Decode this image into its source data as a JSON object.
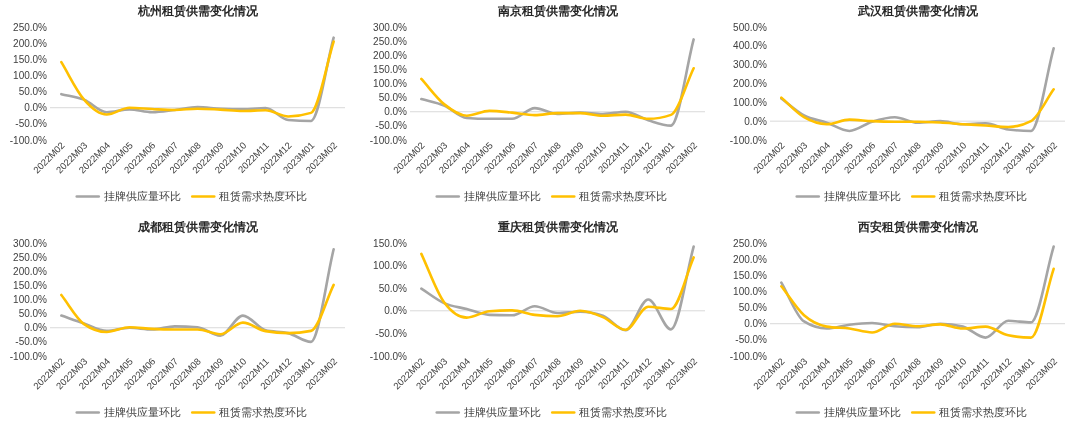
{
  "chart_data": [
    {
      "type": "line",
      "title": "杭州租赁供需变化情况",
      "categories": [
        "2022M02",
        "2022M03",
        "2022M04",
        "2022M05",
        "2022M06",
        "2022M07",
        "2022M08",
        "2022M09",
        "2022M10",
        "2022M11",
        "2022M12",
        "2023M01",
        "2023M02"
      ],
      "series": [
        {
          "name": "挂牌供应量环比",
          "color": "#a5a5a5",
          "values": [
            42,
            25,
            -14,
            -5,
            -14,
            -7,
            2,
            -3,
            -5,
            -1,
            -38,
            -41,
            217
          ]
        },
        {
          "name": "租赁需求热度环比",
          "color": "#ffc000",
          "values": [
            141,
            25,
            -21,
            0,
            -4,
            -7,
            -3,
            -6,
            -10,
            -8,
            -27,
            -16,
            205
          ]
        }
      ],
      "ylim": [
        -100,
        250
      ],
      "yticks": [
        {
          "value": -100,
          "label": "-100.0%"
        },
        {
          "value": -50,
          "label": "-50.0%"
        },
        {
          "value": 0,
          "label": "0.0%"
        },
        {
          "value": 50,
          "label": "50.0%"
        },
        {
          "value": 100,
          "label": "100.0%"
        },
        {
          "value": 150,
          "label": "150.0%"
        },
        {
          "value": 200,
          "label": "200.0%"
        },
        {
          "value": 250,
          "label": "250.0%"
        }
      ],
      "legend": "bottom"
    },
    {
      "type": "line",
      "title": "南京租赁供需变化情况",
      "categories": [
        "2022M02",
        "2022M03",
        "2022M04",
        "2022M05",
        "2022M06",
        "2022M07",
        "2022M08",
        "2022M09",
        "2022M10",
        "2022M11",
        "2022M12",
        "2023M01",
        "2023M02"
      ],
      "series": [
        {
          "name": "挂牌供应量环比",
          "color": "#a5a5a5",
          "values": [
            45,
            22,
            -22,
            -25,
            -25,
            13,
            -8,
            -3,
            -8,
            0,
            -30,
            -49,
            256
          ]
        },
        {
          "name": "租赁需求热度环比",
          "color": "#ffc000",
          "values": [
            116,
            27,
            -14,
            3,
            -3,
            -12,
            -5,
            -5,
            -14,
            -10,
            -25,
            -11,
            154
          ]
        }
      ],
      "ylim": [
        -100,
        300
      ],
      "yticks": [
        {
          "value": -100,
          "label": "-100.0%"
        },
        {
          "value": -50,
          "label": "-50.0%"
        },
        {
          "value": 0,
          "label": "0.0%"
        },
        {
          "value": 50,
          "label": "50.0%"
        },
        {
          "value": 100,
          "label": "100.0%"
        },
        {
          "value": 150,
          "label": "150.0%"
        },
        {
          "value": 200,
          "label": "200.0%"
        },
        {
          "value": 250,
          "label": "250.0%"
        },
        {
          "value": 300,
          "label": "300.0%"
        }
      ],
      "legend": "bottom"
    },
    {
      "type": "line",
      "title": "武汉租赁供需变化情况",
      "categories": [
        "2022M02",
        "2022M03",
        "2022M04",
        "2022M05",
        "2022M06",
        "2022M07",
        "2022M08",
        "2022M09",
        "2022M10",
        "2022M11",
        "2022M12",
        "2023M01",
        "2023M02"
      ],
      "series": [
        {
          "name": "挂牌供应量环比",
          "color": "#a5a5a5",
          "values": [
            120,
            30,
            -8,
            -52,
            -3,
            21,
            -8,
            0,
            -16,
            -11,
            -44,
            -52,
            387
          ]
        },
        {
          "name": "租赁需求热度环比",
          "color": "#ffc000",
          "values": [
            125,
            21,
            -16,
            8,
            0,
            -3,
            -3,
            -7,
            -16,
            -23,
            -31,
            0,
            169
          ]
        }
      ],
      "ylim": [
        -100,
        500
      ],
      "yticks": [
        {
          "value": -100,
          "label": "-100.0%"
        },
        {
          "value": 0,
          "label": "0.0%"
        },
        {
          "value": 100,
          "label": "100.0%"
        },
        {
          "value": 200,
          "label": "200.0%"
        },
        {
          "value": 300,
          "label": "300.0%"
        },
        {
          "value": 400,
          "label": "400.0%"
        },
        {
          "value": 500,
          "label": "500.0%"
        }
      ],
      "legend": "bottom"
    },
    {
      "type": "line",
      "title": "成都租赁供需变化情况",
      "categories": [
        "2022M02",
        "2022M03",
        "2022M04",
        "2022M05",
        "2022M06",
        "2022M07",
        "2022M08",
        "2022M09",
        "2022M10",
        "2022M11",
        "2022M12",
        "2023M01",
        "2023M02"
      ],
      "series": [
        {
          "name": "挂牌供应量环比",
          "color": "#a5a5a5",
          "values": [
            43,
            15,
            -11,
            0,
            -6,
            5,
            2,
            -28,
            43,
            -9,
            -19,
            -50,
            278
          ]
        },
        {
          "name": "租赁需求热度环比",
          "color": "#ffc000",
          "values": [
            116,
            13,
            -15,
            2,
            -4,
            -6,
            -6,
            -23,
            18,
            -12,
            -19,
            -11,
            152
          ]
        }
      ],
      "ylim": [
        -100,
        300
      ],
      "yticks": [
        {
          "value": -100,
          "label": "-100.0%"
        },
        {
          "value": -50,
          "label": "-50.0%"
        },
        {
          "value": 0,
          "label": "0.0%"
        },
        {
          "value": 50,
          "label": "50.0%"
        },
        {
          "value": 100,
          "label": "100.0%"
        },
        {
          "value": 150,
          "label": "150.0%"
        },
        {
          "value": 200,
          "label": "200.0%"
        },
        {
          "value": 250,
          "label": "250.0%"
        },
        {
          "value": 300,
          "label": "300.0%"
        }
      ],
      "legend": "bottom"
    },
    {
      "type": "line",
      "title": "重庆租赁供需变化情况",
      "categories": [
        "2022M02",
        "2022M03",
        "2022M04",
        "2022M05",
        "2022M06",
        "2022M07",
        "2022M08",
        "2022M09",
        "2022M10",
        "2022M11",
        "2022M12",
        "2023M01",
        "2023M02"
      ],
      "series": [
        {
          "name": "挂牌供应量环比",
          "color": "#a5a5a5",
          "values": [
            49,
            17,
            4,
            -9,
            -10,
            10,
            -5,
            -2,
            -11,
            -43,
            25,
            -41,
            142
          ]
        },
        {
          "name": "租赁需求热度环比",
          "color": "#ffc000",
          "values": [
            126,
            19,
            -15,
            -1,
            1,
            -9,
            -12,
            0,
            -14,
            -42,
            9,
            4,
            118
          ]
        }
      ],
      "ylim": [
        -100,
        150
      ],
      "yticks": [
        {
          "value": -100,
          "label": "-100.0%"
        },
        {
          "value": -50,
          "label": "-50.0%"
        },
        {
          "value": 0,
          "label": "0.0%"
        },
        {
          "value": 50,
          "label": "50.0%"
        },
        {
          "value": 100,
          "label": "100.0%"
        },
        {
          "value": 150,
          "label": "150.0%"
        }
      ],
      "legend": "bottom"
    },
    {
      "type": "line",
      "title": "西安租赁供需变化情况",
      "categories": [
        "2022M02",
        "2022M03",
        "2022M04",
        "2022M05",
        "2022M06",
        "2022M07",
        "2022M08",
        "2022M09",
        "2022M10",
        "2022M11",
        "2022M12",
        "2023M01",
        "2023M02"
      ],
      "series": [
        {
          "name": "挂牌供应量环比",
          "color": "#a5a5a5",
          "values": [
            127,
            7,
            -15,
            -3,
            2,
            -8,
            -11,
            0,
            -9,
            -43,
            9,
            4,
            239
          ]
        },
        {
          "name": "租赁需求热度环比",
          "color": "#ffc000",
          "values": [
            116,
            26,
            -9,
            -15,
            -27,
            0,
            -8,
            -2,
            -15,
            -9,
            -36,
            -43,
            170
          ]
        }
      ],
      "ylim": [
        -100,
        250
      ],
      "yticks": [
        {
          "value": -100,
          "label": "-100.0%"
        },
        {
          "value": -50,
          "label": "-50.0%"
        },
        {
          "value": 0,
          "label": "0.0%"
        },
        {
          "value": 50,
          "label": "50.0%"
        },
        {
          "value": 100,
          "label": "100.0%"
        },
        {
          "value": 150,
          "label": "150.0%"
        },
        {
          "value": 200,
          "label": "200.0%"
        },
        {
          "value": 250,
          "label": "250.0%"
        }
      ],
      "legend": "bottom"
    }
  ]
}
